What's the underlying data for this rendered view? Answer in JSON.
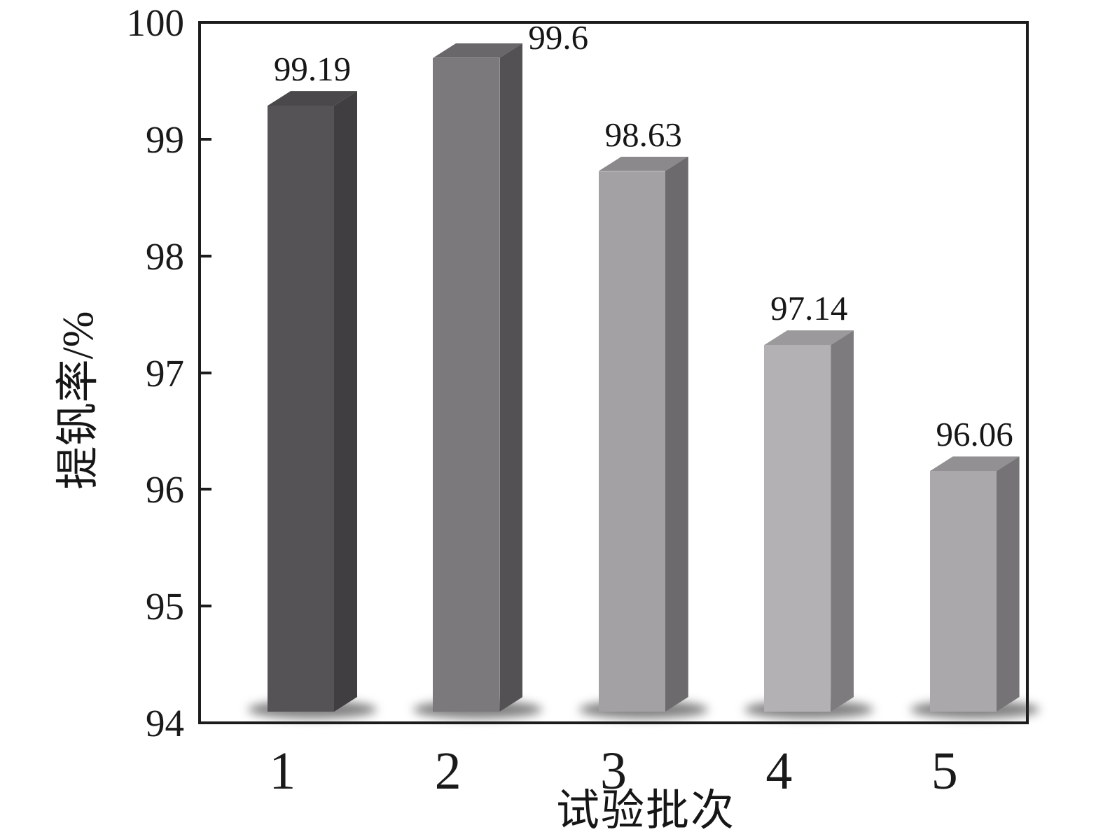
{
  "chart_data": {
    "type": "bar",
    "style": "3d-extruded-bars",
    "title": "",
    "xlabel": "试验批次",
    "ylabel": "提钒率/%",
    "categories": [
      "1",
      "2",
      "3",
      "4",
      "5"
    ],
    "values": [
      99.19,
      99.6,
      98.63,
      97.14,
      96.06
    ],
    "value_labels": [
      "99.19",
      "99.6",
      "98.63",
      "97.14",
      "96.06"
    ],
    "value_label_position": [
      "above",
      "right",
      "above",
      "above",
      "above"
    ],
    "ylim": [
      94,
      100
    ],
    "yticks": [
      94,
      95,
      96,
      97,
      98,
      99,
      100
    ],
    "ytick_labels": [
      "94",
      "95",
      "96",
      "97",
      "98",
      "99",
      "100"
    ],
    "xtick_labels": [
      "1",
      "2",
      "3",
      "4",
      "5"
    ],
    "grid": false,
    "legend": null,
    "axis_color": "#1c1c1c",
    "text_color": "#1a1a1a",
    "background_color": "#ffffff",
    "bar_colors": [
      {
        "front": "#565356",
        "side": "#403e40",
        "top": "#4a484a"
      },
      {
        "front": "#7b797b",
        "side": "#535153",
        "top": "#696769"
      },
      {
        "front": "#a3a1a3",
        "side": "#6c6a6c",
        "top": "#8b898b"
      },
      {
        "front": "#b3b1b3",
        "side": "#7d7b7d",
        "top": "#9b999b"
      },
      {
        "front": "#aaa8aa",
        "side": "#757375",
        "top": "#929092"
      }
    ],
    "shadow_color": "rgba(45,45,45,0.60)"
  }
}
